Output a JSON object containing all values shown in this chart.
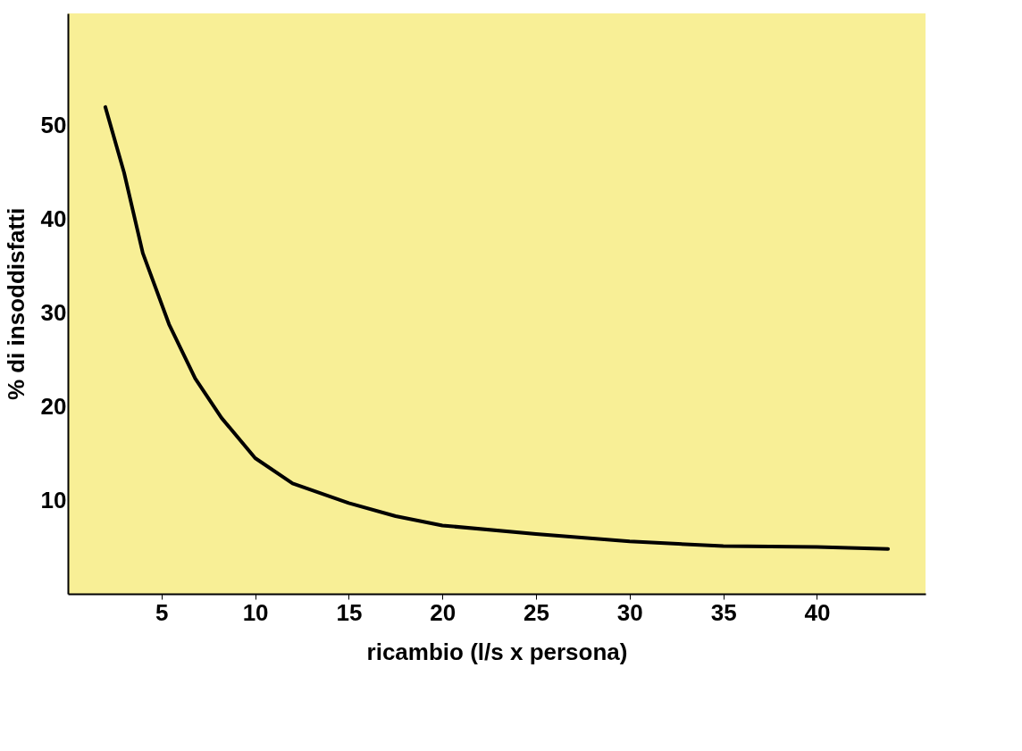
{
  "chart_data": {
    "type": "line",
    "xlabel": "ricambio (l/s x persona)",
    "ylabel": "% di insoddisfatti",
    "x": [
      2,
      3,
      4,
      5.4,
      6.8,
      8.2,
      10,
      12,
      15,
      17.5,
      20,
      25,
      30,
      35,
      40,
      43.8
    ],
    "series": [
      {
        "color": "#000000",
        "values": [
          52,
          45,
          36.4,
          28.8,
          23,
          18.8,
          14.5,
          11.8,
          9.7,
          8.3,
          7.3,
          6.4,
          5.6,
          5.1,
          5.0,
          4.8
        ]
      }
    ],
    "xlim": [
      0,
      45.8
    ],
    "ylim": [
      0,
      62
    ],
    "xticks": [
      5,
      10,
      15,
      20,
      25,
      30,
      35,
      40
    ],
    "yticks": [
      10,
      20,
      30,
      40,
      50
    ],
    "grid": false,
    "legend": false,
    "marker": "none",
    "line_style": "solid"
  }
}
